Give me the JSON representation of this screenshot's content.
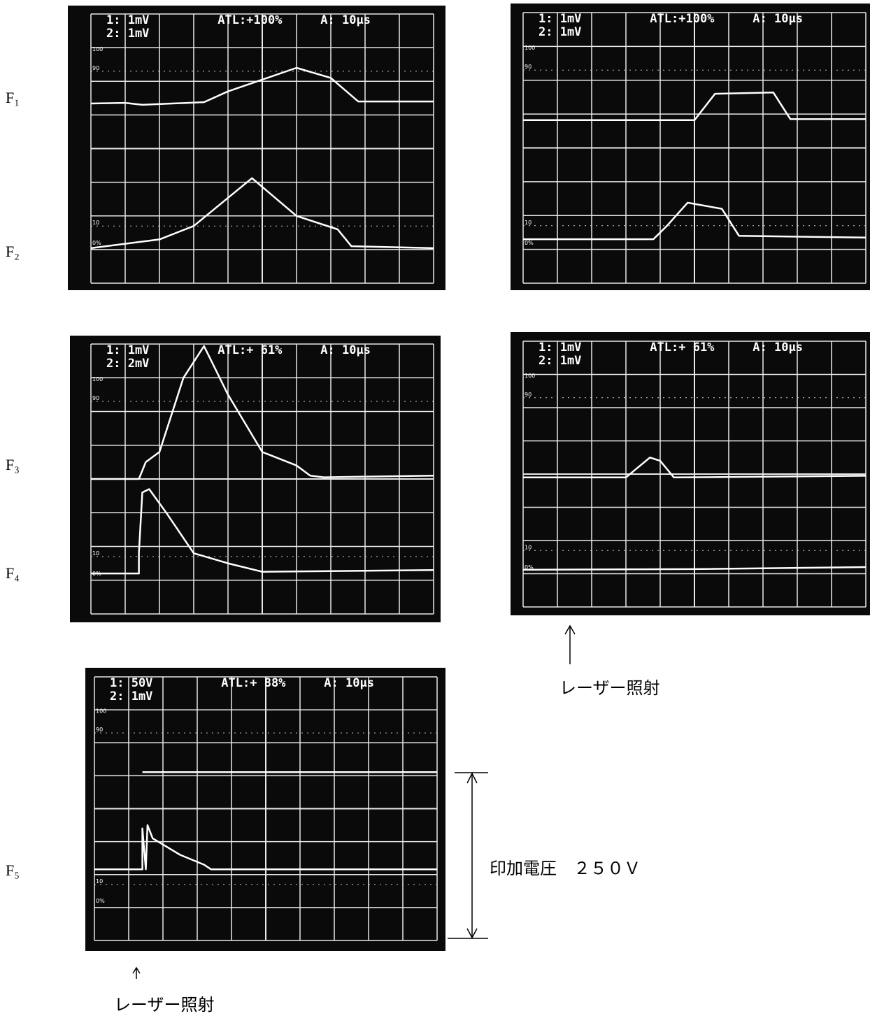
{
  "labels": [
    "F₁",
    "F₂",
    "F₃",
    "F₄",
    "F₅"
  ],
  "screens": [
    {
      "ch1": "1:  1mV",
      "ch2": "2:  1mV",
      "atl": "ATL:+100%",
      "time": "A: 10μs"
    },
    {
      "ch1": "1:  1mV",
      "ch2": "2:  1mV",
      "atl": "ATL:+100%",
      "time": "A: 10μs"
    },
    {
      "ch1": "1:  1mV",
      "ch2": "2:  2mV",
      "atl": "ATL:+ 61%",
      "time": "A: 10μs"
    },
    {
      "ch1": "1:  1mV",
      "ch2": "2:  1mV",
      "atl": "ATL:+ 61%",
      "time": "A: 10μs"
    },
    {
      "ch1": "1:  50V",
      "ch2": "2:  1mV",
      "atl": "ATL:+ 88%",
      "time": "A: 10μs"
    }
  ],
  "scale_marks": [
    "100",
    "90",
    "10",
    "0%"
  ],
  "annotations": {
    "laser_top": "レーザー照射",
    "voltage": "印加電圧　２５０Ｖ",
    "laser_bottom": "レーザー照射"
  }
}
